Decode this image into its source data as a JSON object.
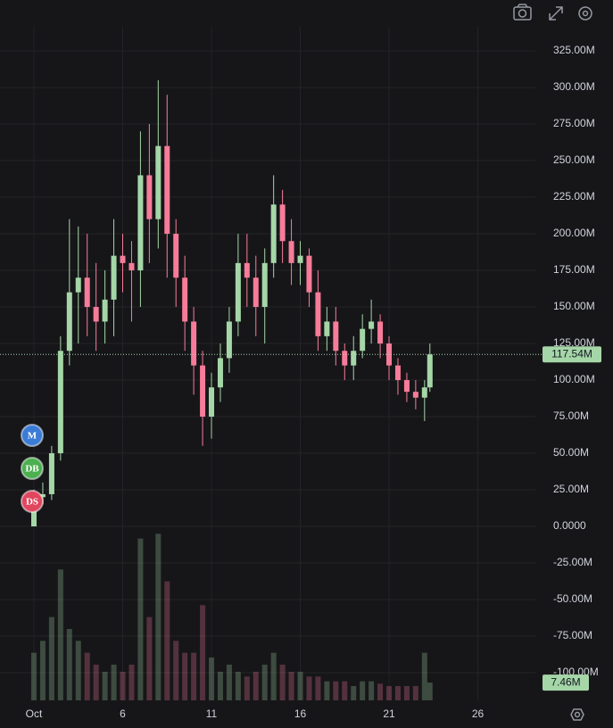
{
  "chart_data": {
    "type": "candlestick",
    "x": [
      1,
      1.5,
      2,
      2.5,
      3,
      3.5,
      4,
      4.5,
      5,
      5.5,
      6,
      6.5,
      7,
      7.5,
      8,
      8.5,
      9,
      9.5,
      10,
      10.5,
      11,
      11.5,
      12,
      12.5,
      13,
      13.5,
      14,
      14.5,
      15,
      15.5,
      16,
      16.5,
      17,
      17.5,
      18,
      18.5,
      19,
      19.5,
      20,
      20.5,
      21,
      21.5,
      22,
      22.5,
      23,
      23.3
    ],
    "open": [
      0,
      20,
      22,
      50,
      120,
      160,
      170,
      150,
      140,
      155,
      185,
      180,
      175,
      240,
      210,
      260,
      200,
      170,
      140,
      110,
      75,
      95,
      115,
      140,
      180,
      170,
      150,
      180,
      220,
      195,
      180,
      185,
      160,
      130,
      140,
      120,
      110,
      120,
      135,
      140,
      125,
      110,
      100,
      92,
      88,
      95
    ],
    "high": [
      25,
      30,
      55,
      130,
      210,
      205,
      200,
      180,
      175,
      210,
      200,
      195,
      270,
      275,
      305,
      295,
      210,
      185,
      150,
      120,
      105,
      125,
      150,
      200,
      200,
      185,
      190,
      240,
      230,
      210,
      195,
      190,
      175,
      150,
      150,
      125,
      130,
      145,
      155,
      145,
      130,
      115,
      105,
      100,
      100,
      125
    ],
    "low": [
      0,
      15,
      18,
      45,
      110,
      125,
      130,
      120,
      125,
      130,
      160,
      140,
      150,
      180,
      190,
      170,
      150,
      120,
      90,
      55,
      60,
      85,
      105,
      130,
      150,
      130,
      125,
      170,
      180,
      165,
      165,
      150,
      120,
      120,
      110,
      100,
      100,
      115,
      125,
      115,
      100,
      90,
      85,
      80,
      72,
      92
    ],
    "close": [
      20,
      22,
      50,
      120,
      160,
      170,
      150,
      140,
      155,
      185,
      180,
      175,
      240,
      210,
      260,
      200,
      170,
      140,
      110,
      75,
      95,
      115,
      140,
      180,
      170,
      150,
      180,
      220,
      195,
      180,
      185,
      160,
      130,
      140,
      120,
      110,
      120,
      135,
      140,
      125,
      110,
      100,
      92,
      88,
      95,
      117.54
    ],
    "volume": [
      20,
      25,
      35,
      55,
      30,
      25,
      20,
      15,
      12,
      15,
      12,
      15,
      68,
      35,
      70,
      50,
      25,
      20,
      20,
      40,
      18,
      12,
      15,
      12,
      10,
      12,
      15,
      20,
      15,
      12,
      12,
      10,
      10,
      8,
      8,
      8,
      6,
      8,
      8,
      7,
      6,
      6,
      6,
      6,
      20,
      7.46
    ],
    "last_price_label": "117.54M",
    "last_volume_label": "7.46M",
    "up_color": "#a5d6a7",
    "down_color": "#f77c99",
    "xlim": [
      -0.91,
      29.24
    ],
    "xticks": [
      {
        "value": 1,
        "label": "Oct"
      },
      6,
      11,
      16,
      21,
      26
    ],
    "ylim": [
      -118.9,
      359.8
    ],
    "yticks": [
      {
        "value": 325,
        "label": "325.00M"
      },
      {
        "value": 300,
        "label": "300.00M"
      },
      {
        "value": 275,
        "label": "275.00M"
      },
      {
        "value": 250,
        "label": "250.00M"
      },
      {
        "value": 225,
        "label": "225.00M"
      },
      {
        "value": 200,
        "label": "200.00M"
      },
      {
        "value": 175,
        "label": "175.00M"
      },
      {
        "value": 150,
        "label": "150.00M"
      },
      {
        "value": 125,
        "label": "125.00M"
      },
      {
        "value": 100,
        "label": "100.00M"
      },
      {
        "value": 75,
        "label": "75.00M"
      },
      {
        "value": 50,
        "label": "50.00M"
      },
      {
        "value": 25,
        "label": "25.00M"
      },
      {
        "value": 0,
        "label": "0.0000"
      },
      {
        "value": -25,
        "label": "-25.00M"
      },
      {
        "value": -50,
        "label": "-50.00M"
      },
      {
        "value": -75,
        "label": "-75.00M"
      },
      {
        "value": -100,
        "label": "-100.00M"
      }
    ],
    "vlim": [
      0,
      75
    ],
    "grid": true,
    "markers": [
      {
        "label": "M",
        "color": "#3a7bd5"
      },
      {
        "label": "DB",
        "color": "#4caf50"
      },
      {
        "label": "DS",
        "color": "#e0465e"
      }
    ]
  }
}
